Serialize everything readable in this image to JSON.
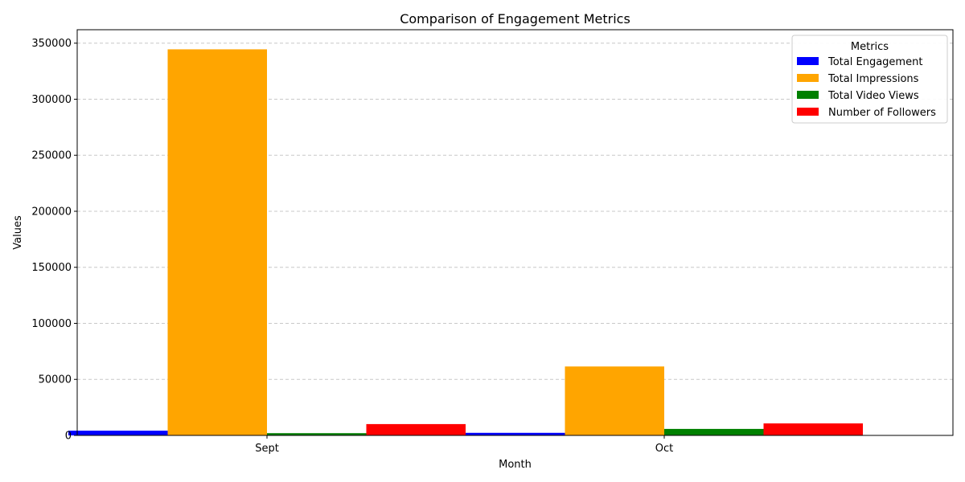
{
  "chart_data": {
    "type": "bar",
    "title": "Comparison of Engagement Metrics",
    "xlabel": "Month",
    "ylabel": "Values",
    "categories": [
      "Sept",
      "Oct"
    ],
    "ylim": [
      0,
      362000
    ],
    "yticks": [
      0,
      50000,
      100000,
      150000,
      200000,
      250000,
      300000,
      350000
    ],
    "grid": "y-dashed",
    "legend": {
      "title": "Metrics",
      "placement": "top-right"
    },
    "series": [
      {
        "name": "Total Engagement",
        "color": "#0000ff",
        "values": [
          4200,
          2300
        ]
      },
      {
        "name": "Total Impressions",
        "color": "#ffa500",
        "values": [
          344500,
          61500
        ]
      },
      {
        "name": "Total Video Views",
        "color": "#008000",
        "values": [
          2000,
          5800
        ]
      },
      {
        "name": "Number of Followers",
        "color": "#ff0000",
        "values": [
          10100,
          10700
        ]
      }
    ]
  }
}
